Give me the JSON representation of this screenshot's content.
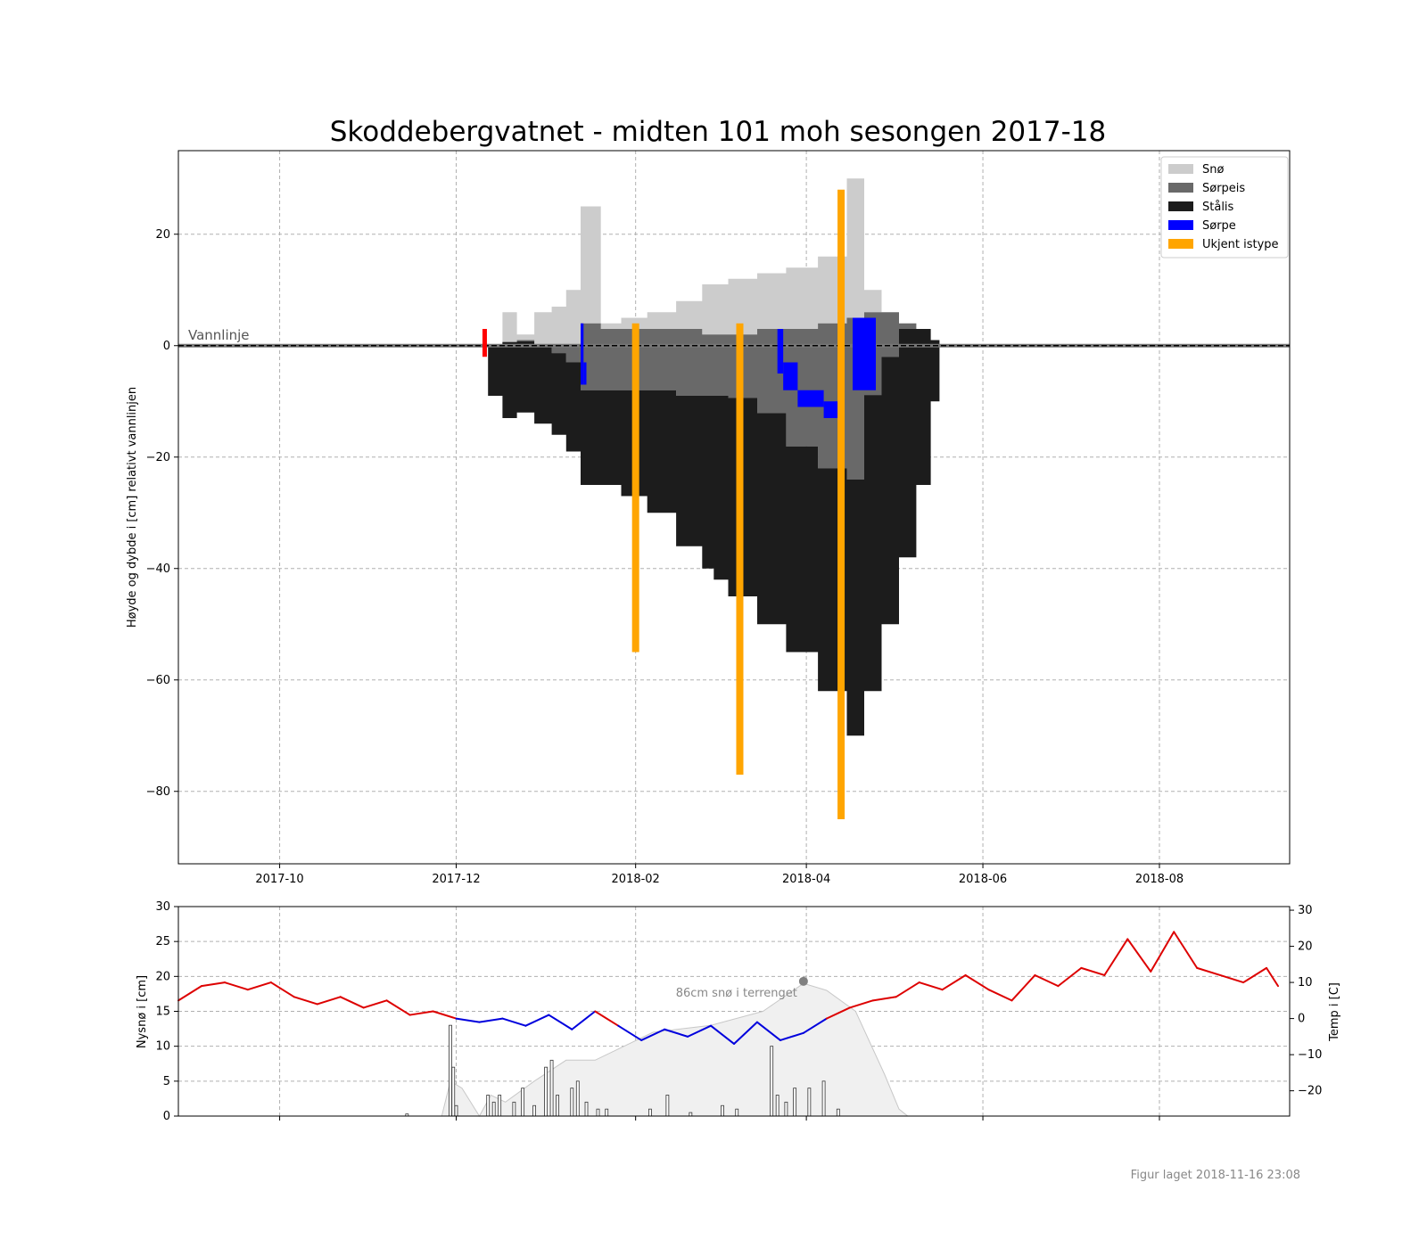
{
  "figure": {
    "title": "Skoddebergvatnet - midten 101 moh sesongen 2017-18",
    "footer": "Figur laget 2018-11-16 23:08"
  },
  "chart_data": [
    {
      "type": "area",
      "title": "Skoddebergvatnet - midten 101 moh sesongen 2017-18",
      "ylabel": "Høyde og dybde i [cm] relativt vannlinjen",
      "xlim": [
        "2017-08-27",
        "2018-09-15"
      ],
      "ylim": [
        -93,
        35
      ],
      "x_ticks": [
        "2017-10",
        "2017-12",
        "2018-02",
        "2018-04",
        "2018-06",
        "2018-08"
      ],
      "y_ticks": [
        20,
        0,
        -20,
        -40,
        -60,
        -80
      ],
      "grid": true,
      "waterline_label": "Vannlinje",
      "legend_position": "top-right",
      "legend": [
        {
          "label": "Snø",
          "color": "#cccccc"
        },
        {
          "label": "Sørpeis",
          "color": "#696969"
        },
        {
          "label": "Stålis",
          "color": "#1c1c1c"
        },
        {
          "label": "Sørpe",
          "color": "#0000ff"
        },
        {
          "label": "Ukjent istype",
          "color": "#ffa500"
        }
      ],
      "profile": [
        {
          "date": "2017-12-12",
          "stalis_bottom": -9,
          "sorpeis_top": 0,
          "snow_top": 0
        },
        {
          "date": "2017-12-17",
          "stalis_bottom": -13,
          "sorpeis_top": 0,
          "snow_top": 6
        },
        {
          "date": "2017-12-22",
          "stalis_bottom": -12,
          "sorpeis_top": 1,
          "snow_top": 2
        },
        {
          "date": "2017-12-28",
          "stalis_bottom": -14,
          "sorpeis_top": 0,
          "snow_top": 6
        },
        {
          "date": "2018-01-03",
          "stalis_bottom": -16,
          "sorpeis_top": 0,
          "snow_top": 7
        },
        {
          "date": "2018-01-08",
          "stalis_bottom": -19,
          "sorpeis_top": 0,
          "snow_top": 10
        },
        {
          "date": "2018-01-13",
          "stalis_bottom": -25,
          "sorpeis_top": 4,
          "snow_top": 25
        },
        {
          "date": "2018-01-20",
          "stalis_bottom": -25,
          "sorpeis_top": 3,
          "snow_top": 4
        },
        {
          "date": "2018-01-27",
          "stalis_bottom": -27,
          "sorpeis_top": 3,
          "snow_top": 5
        },
        {
          "date": "2018-02-05",
          "stalis_bottom": -30,
          "sorpeis_top": 3,
          "snow_top": 6
        },
        {
          "date": "2018-02-15",
          "stalis_bottom": -36,
          "sorpeis_top": 3,
          "snow_top": 8
        },
        {
          "date": "2018-02-24",
          "stalis_bottom": -40,
          "sorpeis_top": 2,
          "snow_top": 11
        },
        {
          "date": "2018-02-28",
          "stalis_bottom": -42,
          "sorpeis_top": 2,
          "snow_top": 11
        },
        {
          "date": "2018-03-05",
          "stalis_bottom": -45,
          "sorpeis_top": 2,
          "snow_top": 12
        },
        {
          "date": "2018-03-15",
          "stalis_bottom": -50,
          "sorpeis_top": 3,
          "snow_top": 13
        },
        {
          "date": "2018-03-25",
          "stalis_bottom": -55,
          "sorpeis_top": 3,
          "snow_top": 14
        },
        {
          "date": "2018-04-05",
          "stalis_bottom": -62,
          "sorpeis_top": 4,
          "snow_top": 16
        },
        {
          "date": "2018-04-15",
          "stalis_bottom": -70,
          "sorpeis_top": 5,
          "snow_top": 30
        },
        {
          "date": "2018-04-21",
          "stalis_bottom": -62,
          "sorpeis_top": 6,
          "snow_top": 10
        },
        {
          "date": "2018-04-27",
          "stalis_bottom": -50,
          "sorpeis_top": 6,
          "snow_top": 6
        },
        {
          "date": "2018-05-03",
          "stalis_bottom": -38,
          "sorpeis_top": 4,
          "snow_top": 4
        },
        {
          "date": "2018-05-09",
          "stalis_bottom": -25,
          "sorpeis_top": 3,
          "snow_top": 3
        },
        {
          "date": "2018-05-14",
          "stalis_bottom": -10,
          "sorpeis_top": 1,
          "snow_top": 1
        },
        {
          "date": "2018-05-17",
          "stalis_bottom": 0,
          "sorpeis_top": 0,
          "snow_top": 0
        }
      ],
      "stalis_top": [
        {
          "date": "2017-12-12",
          "value": 0
        },
        {
          "date": "2017-12-20",
          "value": 1
        },
        {
          "date": "2017-12-30",
          "value": 0
        },
        {
          "date": "2018-01-08",
          "value": -3
        },
        {
          "date": "2018-01-13",
          "value": -8
        },
        {
          "date": "2018-01-20",
          "value": -8
        },
        {
          "date": "2018-02-05",
          "value": -8
        },
        {
          "date": "2018-02-15",
          "value": -9
        },
        {
          "date": "2018-03-01",
          "value": -9
        },
        {
          "date": "2018-03-12",
          "value": -10
        },
        {
          "date": "2018-03-22",
          "value": -17
        },
        {
          "date": "2018-04-05",
          "value": -22
        },
        {
          "date": "2018-04-15",
          "value": -24
        },
        {
          "date": "2018-04-20",
          "value": -10
        },
        {
          "date": "2018-04-27",
          "value": -2
        },
        {
          "date": "2018-05-03",
          "value": 3
        },
        {
          "date": "2018-05-09",
          "value": 3
        },
        {
          "date": "2018-05-14",
          "value": 1
        },
        {
          "date": "2018-05-17",
          "value": 0
        }
      ],
      "sorpe_segments": [
        {
          "date_start": "2018-01-13",
          "date_end": "2018-01-14",
          "from": 4,
          "to": -7
        },
        {
          "date_start": "2018-01-14",
          "date_end": "2018-01-15",
          "from": -3,
          "to": -7
        },
        {
          "date_start": "2018-03-22",
          "date_end": "2018-03-24",
          "from": 3,
          "to": -5
        },
        {
          "date_start": "2018-03-24",
          "date_end": "2018-03-29",
          "from": -3,
          "to": -8
        },
        {
          "date_start": "2018-03-29",
          "date_end": "2018-04-07",
          "from": -8,
          "to": -11
        },
        {
          "date_start": "2018-04-07",
          "date_end": "2018-04-12",
          "from": -10,
          "to": -13
        },
        {
          "date_start": "2018-04-17",
          "date_end": "2018-04-25",
          "from": -8,
          "to": 5
        }
      ],
      "ukjent_istype": [
        {
          "date": "2018-02-01",
          "top": 4,
          "bottom": -55
        },
        {
          "date": "2018-03-09",
          "top": 4,
          "bottom": -77
        },
        {
          "date": "2018-04-13",
          "top": 28,
          "bottom": -85
        }
      ],
      "red_marker": {
        "date": "2017-12-11",
        "top": 3,
        "bottom": -2
      }
    },
    {
      "type": "line",
      "ylabel_left": "Nysnø i [cm]",
      "ylabel_right": "Temp i [C]",
      "ylim_left": [
        0,
        30
      ],
      "y_ticks_left": [
        0,
        5,
        10,
        15,
        20,
        25,
        30
      ],
      "ylim_right": [
        -27,
        31
      ],
      "y_ticks_right": [
        -20,
        -10,
        0,
        10,
        20,
        30
      ],
      "grid": true,
      "annotation": {
        "text": "86cm snø i terrenget",
        "date": "2018-03-31",
        "value_cm": 19.3
      },
      "snow_depth_terrain": [
        {
          "date": "2017-11-26",
          "cm": 0
        },
        {
          "date": "2017-11-29",
          "cm": 5
        },
        {
          "date": "2017-12-03",
          "cm": 4
        },
        {
          "date": "2017-12-09",
          "cm": 0
        },
        {
          "date": "2017-12-13",
          "cm": 3
        },
        {
          "date": "2017-12-18",
          "cm": 2
        },
        {
          "date": "2017-12-28",
          "cm": 5
        },
        {
          "date": "2018-01-08",
          "cm": 8
        },
        {
          "date": "2018-01-18",
          "cm": 8
        },
        {
          "date": "2018-02-07",
          "cm": 12
        },
        {
          "date": "2018-02-27",
          "cm": 13
        },
        {
          "date": "2018-03-17",
          "cm": 15
        },
        {
          "date": "2018-03-31",
          "cm": 19
        },
        {
          "date": "2018-04-08",
          "cm": 18
        },
        {
          "date": "2018-04-18",
          "cm": 15
        },
        {
          "date": "2018-04-28",
          "cm": 6
        },
        {
          "date": "2018-05-03",
          "cm": 1
        },
        {
          "date": "2018-05-06",
          "cm": 0
        }
      ],
      "new_snow_bars": [
        {
          "date": "2017-11-14",
          "cm": 0.3
        },
        {
          "date": "2017-11-29",
          "cm": 13
        },
        {
          "date": "2017-11-30",
          "cm": 7
        },
        {
          "date": "2017-12-01",
          "cm": 1.5
        },
        {
          "date": "2017-12-12",
          "cm": 3
        },
        {
          "date": "2017-12-14",
          "cm": 2
        },
        {
          "date": "2017-12-16",
          "cm": 3
        },
        {
          "date": "2017-12-21",
          "cm": 2
        },
        {
          "date": "2017-12-24",
          "cm": 4
        },
        {
          "date": "2017-12-28",
          "cm": 1.5
        },
        {
          "date": "2018-01-01",
          "cm": 7
        },
        {
          "date": "2018-01-03",
          "cm": 8
        },
        {
          "date": "2018-01-05",
          "cm": 3
        },
        {
          "date": "2018-01-10",
          "cm": 4
        },
        {
          "date": "2018-01-12",
          "cm": 5
        },
        {
          "date": "2018-01-15",
          "cm": 2
        },
        {
          "date": "2018-01-19",
          "cm": 1
        },
        {
          "date": "2018-01-22",
          "cm": 1
        },
        {
          "date": "2018-02-06",
          "cm": 1
        },
        {
          "date": "2018-02-12",
          "cm": 3
        },
        {
          "date": "2018-02-20",
          "cm": 0.5
        },
        {
          "date": "2018-03-03",
          "cm": 1.5
        },
        {
          "date": "2018-03-08",
          "cm": 1
        },
        {
          "date": "2018-03-20",
          "cm": 10
        },
        {
          "date": "2018-03-22",
          "cm": 3
        },
        {
          "date": "2018-03-25",
          "cm": 2
        },
        {
          "date": "2018-03-28",
          "cm": 4
        },
        {
          "date": "2018-04-02",
          "cm": 4
        },
        {
          "date": "2018-04-07",
          "cm": 5
        },
        {
          "date": "2018-04-12",
          "cm": 1
        }
      ],
      "temperature": [
        {
          "date": "2017-08-27",
          "c": 5
        },
        {
          "date": "2017-09-04",
          "c": 9
        },
        {
          "date": "2017-09-12",
          "c": 10
        },
        {
          "date": "2017-09-20",
          "c": 8
        },
        {
          "date": "2017-09-28",
          "c": 10
        },
        {
          "date": "2017-10-06",
          "c": 6
        },
        {
          "date": "2017-10-14",
          "c": 4
        },
        {
          "date": "2017-10-22",
          "c": 6
        },
        {
          "date": "2017-10-30",
          "c": 3
        },
        {
          "date": "2017-11-07",
          "c": 5
        },
        {
          "date": "2017-11-15",
          "c": 1
        },
        {
          "date": "2017-11-23",
          "c": 2
        },
        {
          "date": "2017-12-01",
          "c": 0
        },
        {
          "date": "2017-12-09",
          "c": -1
        },
        {
          "date": "2017-12-17",
          "c": 0
        },
        {
          "date": "2017-12-25",
          "c": -2
        },
        {
          "date": "2018-01-02",
          "c": 1
        },
        {
          "date": "2018-01-10",
          "c": -3
        },
        {
          "date": "2018-01-18",
          "c": 2
        },
        {
          "date": "2018-01-26",
          "c": -2
        },
        {
          "date": "2018-02-03",
          "c": -6
        },
        {
          "date": "2018-02-11",
          "c": -3
        },
        {
          "date": "2018-02-19",
          "c": -5
        },
        {
          "date": "2018-02-27",
          "c": -2
        },
        {
          "date": "2018-03-07",
          "c": -7
        },
        {
          "date": "2018-03-15",
          "c": -1
        },
        {
          "date": "2018-03-23",
          "c": -6
        },
        {
          "date": "2018-03-31",
          "c": -4
        },
        {
          "date": "2018-04-08",
          "c": 0
        },
        {
          "date": "2018-04-16",
          "c": 3
        },
        {
          "date": "2018-04-24",
          "c": 5
        },
        {
          "date": "2018-05-02",
          "c": 6
        },
        {
          "date": "2018-05-10",
          "c": 10
        },
        {
          "date": "2018-05-18",
          "c": 8
        },
        {
          "date": "2018-05-26",
          "c": 12
        },
        {
          "date": "2018-06-03",
          "c": 8
        },
        {
          "date": "2018-06-11",
          "c": 5
        },
        {
          "date": "2018-06-19",
          "c": 12
        },
        {
          "date": "2018-06-27",
          "c": 9
        },
        {
          "date": "2018-07-05",
          "c": 14
        },
        {
          "date": "2018-07-13",
          "c": 12
        },
        {
          "date": "2018-07-21",
          "c": 22
        },
        {
          "date": "2018-07-29",
          "c": 13
        },
        {
          "date": "2018-08-06",
          "c": 24
        },
        {
          "date": "2018-08-14",
          "c": 14
        },
        {
          "date": "2018-08-22",
          "c": 12
        },
        {
          "date": "2018-08-30",
          "c": 10
        },
        {
          "date": "2018-09-07",
          "c": 14
        },
        {
          "date": "2018-09-11",
          "c": 9
        }
      ]
    }
  ]
}
